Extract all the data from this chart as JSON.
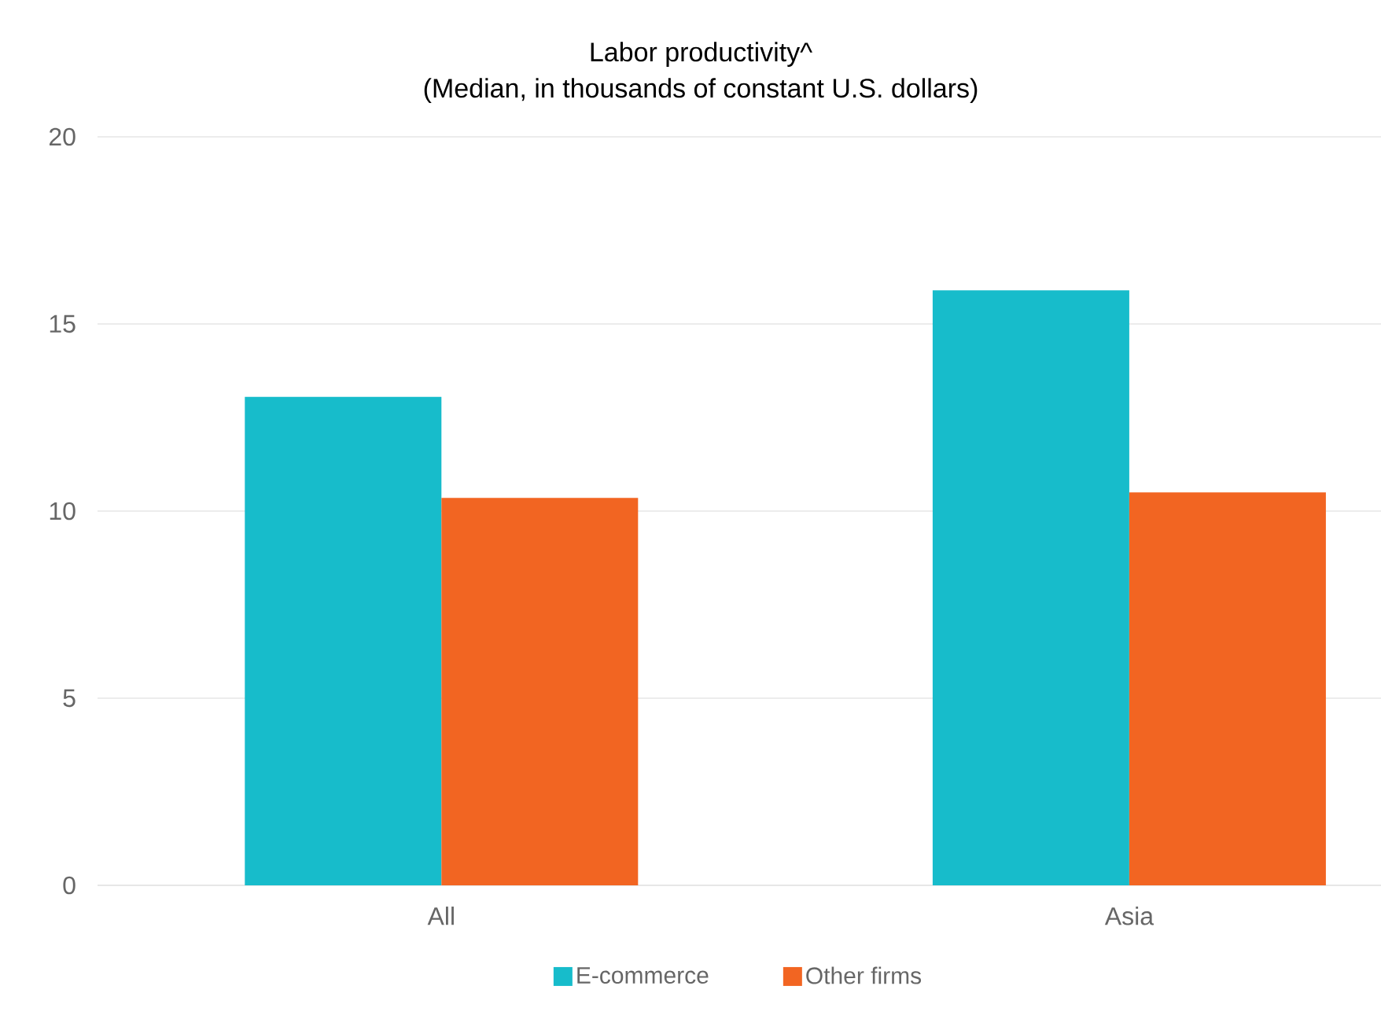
{
  "chart_data": {
    "type": "bar",
    "title": "Labor productivity^",
    "subtitle": "(Median, in thousands of constant U.S. dollars)",
    "categories": [
      "All",
      "Asia"
    ],
    "series": [
      {
        "name": "E-commerce",
        "color": "#17bccb",
        "values": [
          13.05,
          15.9
        ]
      },
      {
        "name": "Other firms",
        "color": "#f26522",
        "values": [
          10.35,
          10.5
        ]
      }
    ],
    "ylim": [
      0,
      20
    ],
    "yticks": [
      0,
      5,
      10,
      15,
      20
    ],
    "grid": "y",
    "legend": "bottom"
  }
}
